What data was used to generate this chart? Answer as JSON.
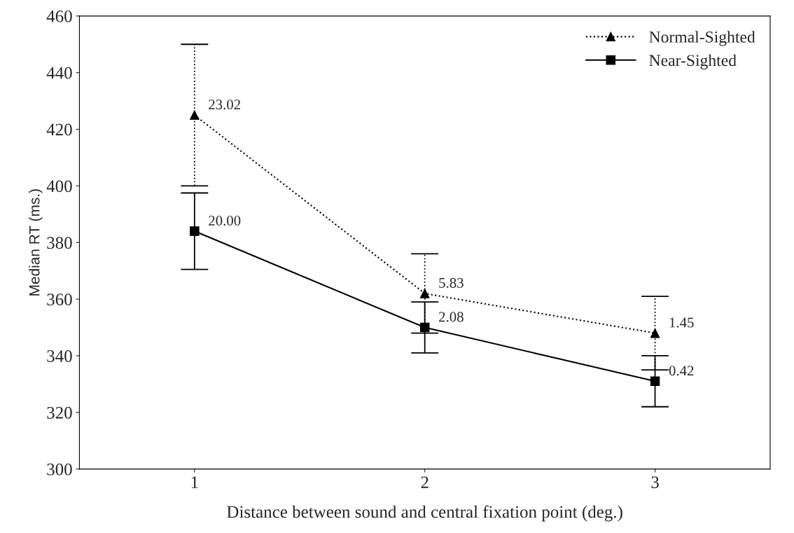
{
  "chart_data": {
    "type": "line",
    "xlabel": "Distance between sound and central fixation point (deg.)",
    "ylabel": "Median RT (ms.)",
    "x": [
      1,
      2,
      3
    ],
    "xlim": [
      0.5,
      3.5
    ],
    "xticks": [
      1,
      2,
      3
    ],
    "ylim": [
      300,
      460
    ],
    "yticks": [
      300,
      320,
      340,
      360,
      380,
      400,
      420,
      440,
      460
    ],
    "grid": false,
    "legend": "top right",
    "series": [
      {
        "name": "Normal-Sighted",
        "color": "#000000",
        "values": [
          425,
          362,
          348
        ],
        "errors": [
          25,
          14,
          13
        ],
        "marker": "triangle",
        "line_style": "dotted"
      },
      {
        "name": "Near-Sighted",
        "color": "#000000",
        "values": [
          384,
          350,
          331
        ],
        "errors": [
          13.5,
          9,
          9
        ],
        "marker": "square",
        "line_style": "solid"
      }
    ],
    "annotations": [
      {
        "text": "23.02",
        "x": 1,
        "y": 425
      },
      {
        "text": "20.00",
        "x": 1,
        "y": 384
      },
      {
        "text": "5.83",
        "x": 2,
        "y": 362
      },
      {
        "text": "2.08",
        "x": 2,
        "y": 350
      },
      {
        "text": "1.45",
        "x": 3,
        "y": 348
      },
      {
        "text": "0.42",
        "x": 3,
        "y": 331
      }
    ]
  }
}
